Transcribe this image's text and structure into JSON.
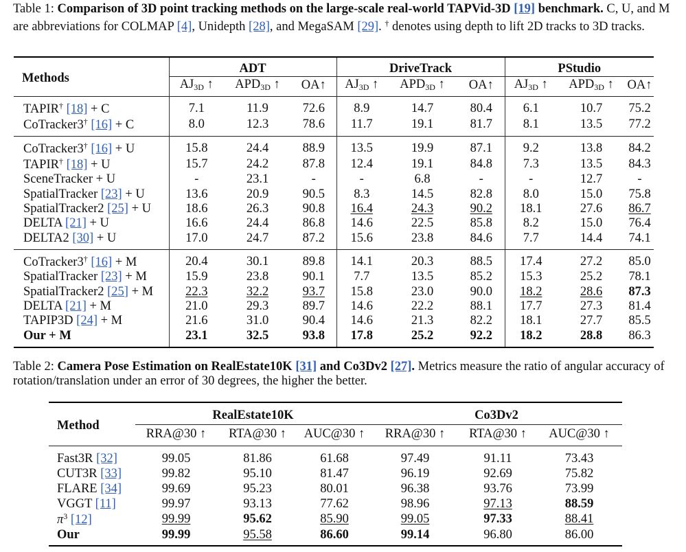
{
  "table1": {
    "caption": {
      "label": "Table 1: ",
      "title_a": "Comparison of 3D point tracking methods on the large-scale real-world TAPVid-3D ",
      "title_ref": "[19]",
      "title_b": " benchmark.",
      "body_a": " C, U, and M are abbreviations for COLMAP ",
      "ref_colmap": "[4]",
      "body_b": ", Unidepth ",
      "ref_unidepth": "[28]",
      "body_c": ", and MegaSAM ",
      "ref_megasam": "[29]",
      "body_d": ". ",
      "dagger": "†",
      "body_e": " denotes using depth to lift 2D tracks to 3D tracks."
    },
    "method_header": "Methods",
    "groups": [
      "ADT",
      "DriveTrack",
      "PStudio"
    ],
    "metric_headers": [
      {
        "name": "AJ",
        "sub": "3D",
        "arrow": " ↑"
      },
      {
        "name": "APD",
        "sub": "3D",
        "arrow": " ↑"
      },
      {
        "name": "OA",
        "sub": "",
        "arrow": "↑"
      }
    ],
    "sections": [
      [
        {
          "name": "TAPIR",
          "dagger": "†",
          "ref": "[18]",
          "suffix": " + C",
          "bold_name": false,
          "values": [
            "7.1",
            "11.9",
            "72.6",
            "8.9",
            "14.7",
            "80.4",
            "6.1",
            "10.7",
            "75.2"
          ],
          "bold": [],
          "underline": []
        },
        {
          "name": "CoTracker3",
          "dagger": "†",
          "ref": "[16]",
          "suffix": " + C",
          "bold_name": false,
          "values": [
            "8.0",
            "12.3",
            "78.6",
            "11.7",
            "19.1",
            "81.7",
            "8.1",
            "13.5",
            "77.2"
          ],
          "bold": [],
          "underline": []
        }
      ],
      [
        {
          "name": "CoTracker3",
          "dagger": "†",
          "ref": "[16]",
          "suffix": " + U",
          "bold_name": false,
          "values": [
            "15.8",
            "24.4",
            "88.9",
            "13.5",
            "19.9",
            "87.1",
            "9.2",
            "13.8",
            "84.2"
          ],
          "bold": [],
          "underline": []
        },
        {
          "name": "TAPIR",
          "dagger": "†",
          "ref": "[18]",
          "suffix": " + U",
          "bold_name": false,
          "values": [
            "15.7",
            "24.2",
            "87.8",
            "12.4",
            "19.1",
            "84.8",
            "7.3",
            "13.5",
            "84.3"
          ],
          "bold": [],
          "underline": []
        },
        {
          "name": "SceneTracker + U",
          "dagger": "",
          "ref": "",
          "suffix": "",
          "bold_name": false,
          "values": [
            "-",
            "23.1",
            "-",
            "-",
            "6.8",
            "-",
            "-",
            "12.7",
            "-"
          ],
          "bold": [],
          "underline": []
        },
        {
          "name": "SpatialTracker ",
          "dagger": "",
          "ref": "[23]",
          "suffix": " + U",
          "bold_name": false,
          "values": [
            "13.6",
            "20.9",
            "90.5",
            "8.3",
            "14.5",
            "82.8",
            "8.0",
            "15.0",
            "75.8"
          ],
          "bold": [],
          "underline": []
        },
        {
          "name": "SpatialTracker2 ",
          "dagger": "",
          "ref": "[25]",
          "suffix": " + U",
          "bold_name": false,
          "values": [
            "18.6",
            "26.3",
            "90.8",
            "16.4",
            "24.3",
            "90.2",
            "18.1",
            "27.6",
            "86.7"
          ],
          "bold": [],
          "underline": [
            3,
            4,
            5,
            8
          ]
        },
        {
          "name": "DELTA ",
          "dagger": "",
          "ref": "[21]",
          "suffix": " + U",
          "bold_name": false,
          "values": [
            "16.6",
            "24.4",
            "86.8",
            "14.6",
            "22.5",
            "85.8",
            "8.2",
            "15.0",
            "76.4"
          ],
          "bold": [],
          "underline": []
        },
        {
          "name": "DELTA2 ",
          "dagger": "",
          "ref": "[30]",
          "suffix": " + U",
          "bold_name": false,
          "values": [
            "17.0",
            "24.7",
            "87.2",
            "15.6",
            "23.8",
            "84.6",
            "7.7",
            "14.4",
            "74.1"
          ],
          "bold": [],
          "underline": []
        }
      ],
      [
        {
          "name": "CoTracker3",
          "dagger": "†",
          "ref": "[16]",
          "suffix": " + M",
          "bold_name": false,
          "values": [
            "20.4",
            "30.1",
            "89.8",
            "14.1",
            "20.3",
            "88.5",
            "17.4",
            "27.2",
            "85.0"
          ],
          "bold": [],
          "underline": []
        },
        {
          "name": "SpatialTracker ",
          "dagger": "",
          "ref": "[23]",
          "suffix": " + M",
          "bold_name": false,
          "values": [
            "15.9",
            "23.8",
            "90.1",
            "7.7",
            "13.5",
            "85.2",
            "15.3",
            "25.2",
            "78.1"
          ],
          "bold": [],
          "underline": []
        },
        {
          "name": "SpatialTracker2 ",
          "dagger": "",
          "ref": "[25]",
          "suffix": " + M",
          "bold_name": false,
          "values": [
            "22.3",
            "32.2",
            "93.7",
            "15.8",
            "23.0",
            "90.0",
            "18.2",
            "28.6",
            "87.3"
          ],
          "bold": [
            8
          ],
          "underline": [
            0,
            1,
            2,
            6,
            7
          ]
        },
        {
          "name": "DELTA ",
          "dagger": "",
          "ref": "[21]",
          "suffix": " + M",
          "bold_name": false,
          "values": [
            "21.0",
            "29.3",
            "89.7",
            "14.6",
            "22.2",
            "88.1",
            "17.7",
            "27.3",
            "81.4"
          ],
          "bold": [],
          "underline": []
        },
        {
          "name": "TAPIP3D ",
          "dagger": "",
          "ref": "[24]",
          "suffix": " + M",
          "bold_name": false,
          "values": [
            "21.6",
            "31.0",
            "90.4",
            "14.6",
            "21.3",
            "82.2",
            "18.1",
            "27.7",
            "85.5"
          ],
          "bold": [],
          "underline": []
        },
        {
          "name": "Our + M",
          "dagger": "",
          "ref": "",
          "suffix": "",
          "bold_name": true,
          "values": [
            "23.1",
            "32.5",
            "93.8",
            "17.8",
            "25.2",
            "92.2",
            "18.2",
            "28.8",
            "86.3"
          ],
          "bold": [
            0,
            1,
            2,
            3,
            4,
            5,
            6,
            7
          ],
          "underline": []
        }
      ]
    ]
  },
  "table2": {
    "caption": {
      "label": "Table 2: ",
      "title_a": "Camera Pose Estimation on RealEstate10K ",
      "ref_a": "[31]",
      "title_b": " and Co3Dv2 ",
      "ref_b": "[27]",
      "title_c": ".",
      "body": " Metrics measure the ratio of angular accuracy of rotation/translation under an error of 30 degrees, the higher the better."
    },
    "method_header": "Method",
    "groups": [
      "RealEstate10K",
      "Co3Dv2"
    ],
    "metric_headers": [
      "RRA@30 ↑",
      "RTA@30 ↑",
      "AUC@30 ↑"
    ],
    "rows": [
      {
        "name": "Fast3R ",
        "sup": "",
        "ref": "[32]",
        "bold_name": false,
        "values": [
          "99.05",
          "81.86",
          "61.68",
          "97.49",
          "91.11",
          "73.43"
        ],
        "bold": [],
        "underline": []
      },
      {
        "name": "CUT3R ",
        "sup": "",
        "ref": "[33]",
        "bold_name": false,
        "values": [
          "99.82",
          "95.10",
          "81.47",
          "96.19",
          "92.69",
          "75.82"
        ],
        "bold": [],
        "underline": []
      },
      {
        "name": "FLARE ",
        "sup": "",
        "ref": "[34]",
        "bold_name": false,
        "values": [
          "99.69",
          "95.23",
          "80.01",
          "96.38",
          "93.76",
          "73.99"
        ],
        "bold": [],
        "underline": []
      },
      {
        "name": "VGGT ",
        "sup": "",
        "ref": "[11]",
        "bold_name": false,
        "values": [
          "99.97",
          "93.13",
          "77.62",
          "98.96",
          "97.13",
          "88.59"
        ],
        "bold": [
          5
        ],
        "underline": [
          4
        ]
      },
      {
        "name": "π",
        "sup": "3",
        "ref": "[12]",
        "bold_name": false,
        "values": [
          "99.99",
          "95.62",
          "85.90",
          "99.05",
          "97.33",
          "88.41"
        ],
        "bold": [
          1,
          4
        ],
        "underline": [
          0,
          2,
          3,
          5
        ]
      },
      {
        "name": "Our",
        "sup": "",
        "ref": "",
        "bold_name": true,
        "values": [
          "99.99",
          "95.58",
          "86.60",
          "99.14",
          "96.80",
          "86.00"
        ],
        "bold": [
          0,
          2,
          3
        ],
        "underline": [
          1
        ]
      }
    ]
  }
}
